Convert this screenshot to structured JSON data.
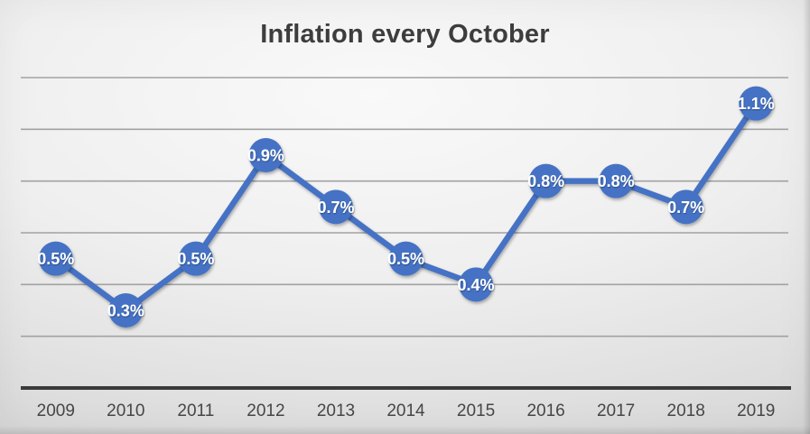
{
  "chart": {
    "title": "Inflation every October"
  },
  "chart_data": {
    "type": "line",
    "title": "Inflation every October",
    "categories": [
      "2009",
      "2010",
      "2011",
      "2012",
      "2013",
      "2014",
      "2015",
      "2016",
      "2017",
      "2018",
      "2019"
    ],
    "values": [
      0.5,
      0.3,
      0.5,
      0.9,
      0.7,
      0.5,
      0.4,
      0.8,
      0.8,
      0.7,
      1.1
    ],
    "data_labels": [
      "0.5%",
      "0.3%",
      "0.5%",
      "0.9%",
      "0.7%",
      "0.5%",
      "0.4%",
      "0.8%",
      "0.8%",
      "0.7%",
      "1.1%"
    ],
    "unit": "%",
    "xlabel": "",
    "ylabel": "",
    "ylim": [
      0,
      1.2
    ],
    "gridline_interval": 0.2,
    "grid": true,
    "y_tick_labels_visible": false,
    "legend": "none",
    "colors": {
      "series_line": "#4472C4",
      "marker_fill": "#4472C4",
      "data_label_text": "#FFFFFF",
      "axis_line": "#3A3A3A",
      "gridline": "#A2A2A2",
      "title_text": "#3D3D3D",
      "category_label_text": "#464646"
    }
  }
}
